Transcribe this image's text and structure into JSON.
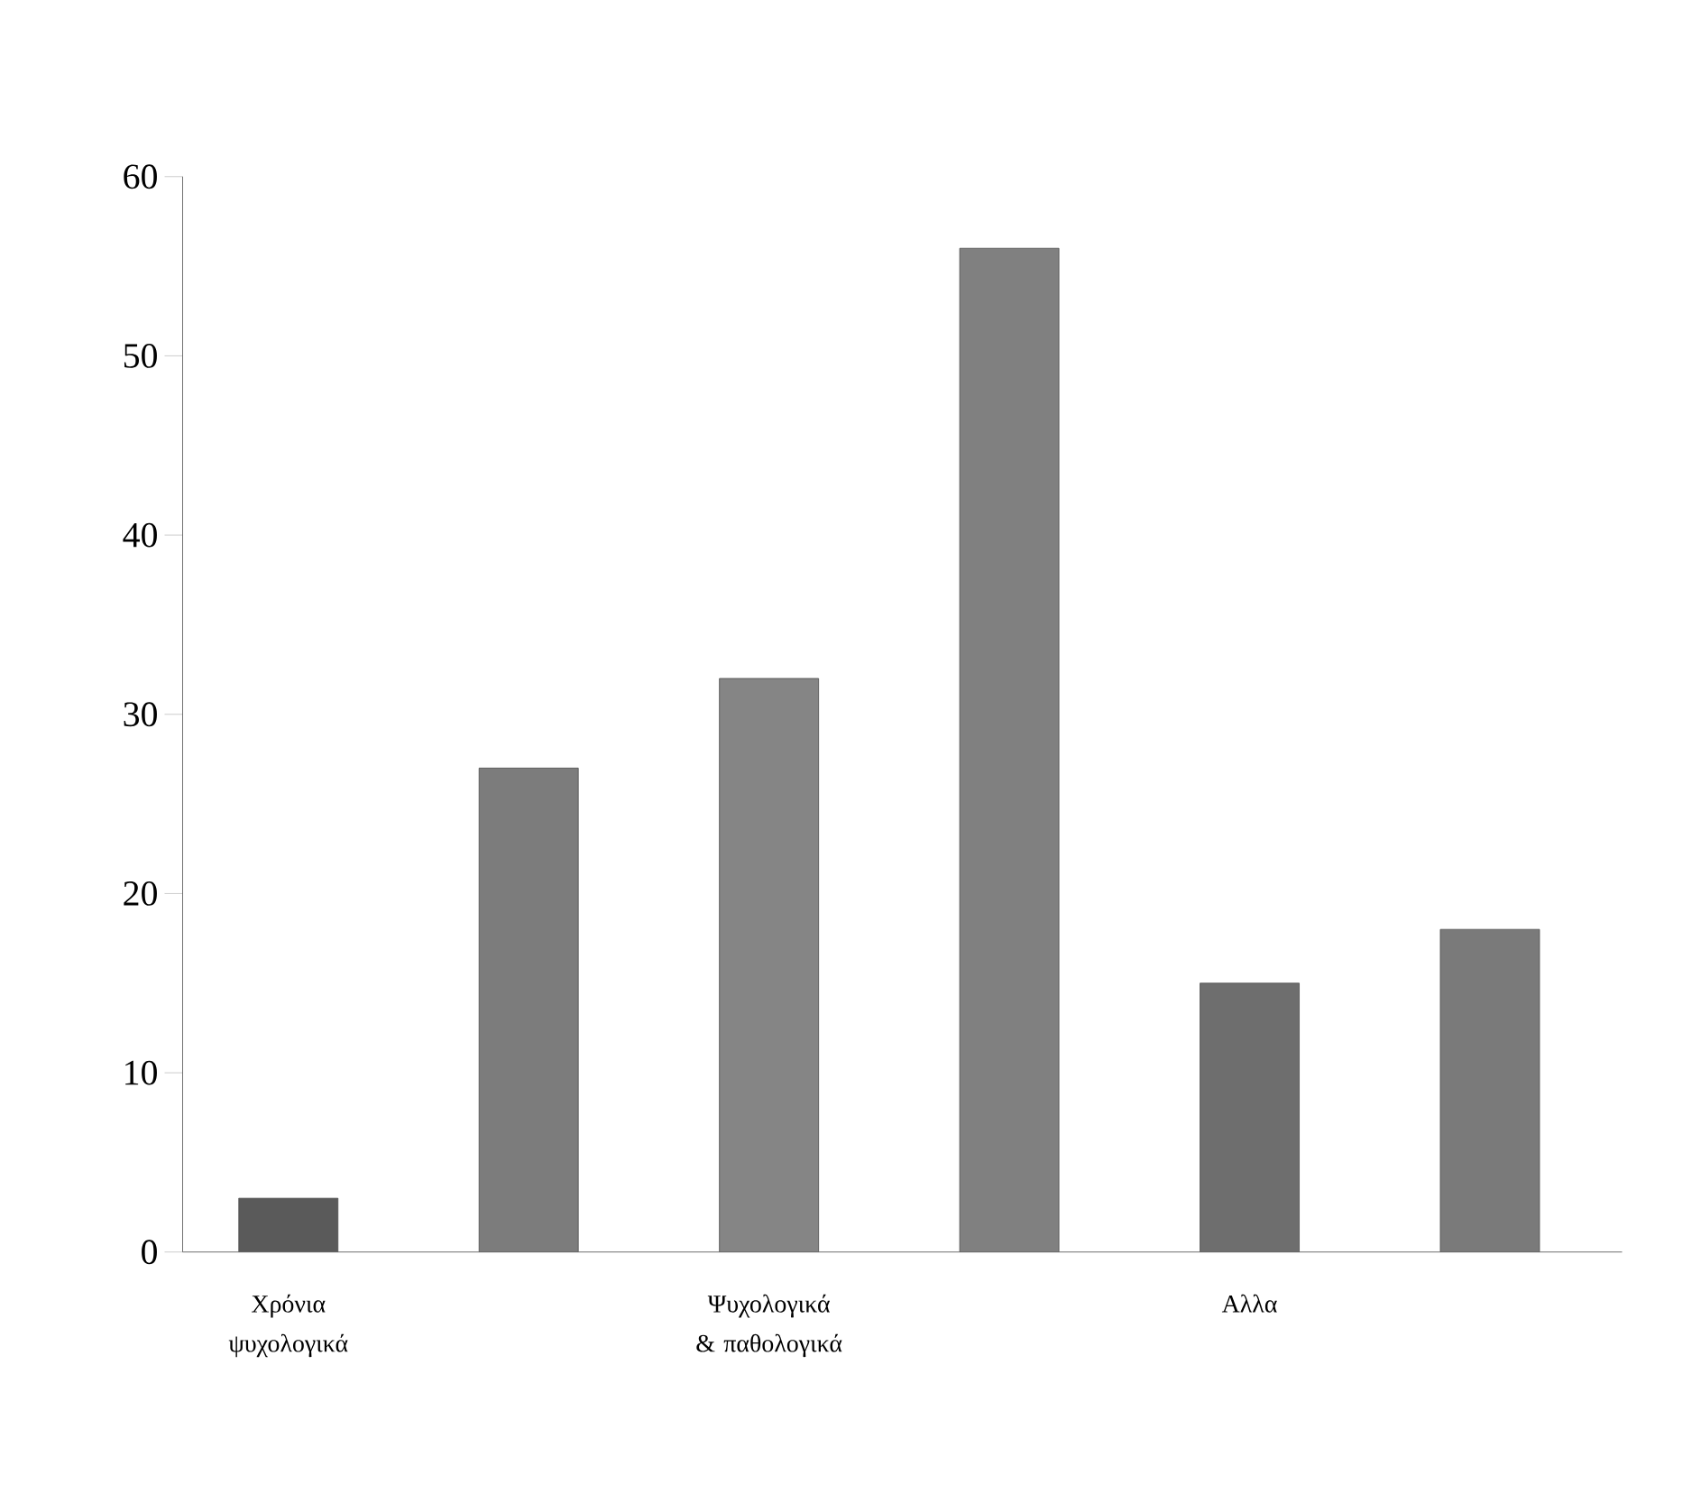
{
  "chart_data": {
    "type": "bar",
    "categories": [
      "Χρόνια ψυχολογικά",
      null,
      "Ψυχολογικά & παθολογικά",
      null,
      "Αλλα",
      null
    ],
    "values": [
      3,
      27,
      32,
      56,
      15,
      18
    ],
    "colors": [
      "#5a5a5a",
      "#7c7c7c",
      "#858585",
      "#808080",
      "#6e6e6e",
      "#7a7a7a"
    ],
    "ylim": [
      0,
      60
    ],
    "yticks": [
      0,
      10,
      20,
      30,
      40,
      50,
      60
    ]
  }
}
